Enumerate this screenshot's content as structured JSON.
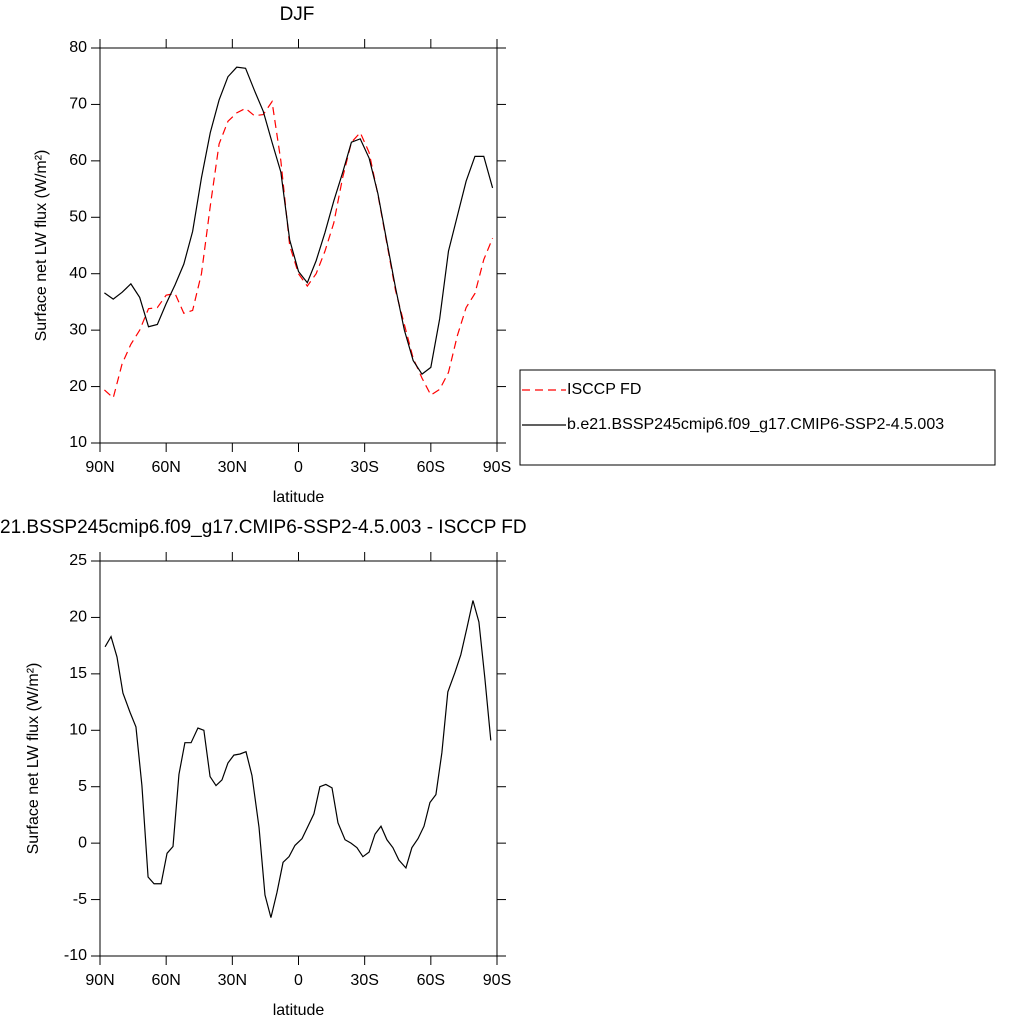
{
  "chart_data": [
    {
      "type": "line",
      "title": "DJF",
      "x_label": "latitude",
      "y_label": "Surface net LW flux (W/m²)",
      "x": [
        88,
        84,
        80,
        76,
        72,
        68,
        64,
        60,
        56,
        52,
        48,
        44,
        40,
        36,
        32,
        28,
        24,
        20,
        16,
        12,
        8,
        4,
        0,
        -4,
        -8,
        -12,
        -16,
        -20,
        -24,
        -28,
        -32,
        -36,
        -40,
        -44,
        -48,
        -52,
        -56,
        -60,
        -64,
        -68,
        -72,
        -76,
        -80,
        -84,
        -88
      ],
      "series": [
        {
          "name": "ISCCP FD",
          "color": "#ff0000",
          "line_style": "dashed",
          "values": [
            19.4,
            18.0,
            24.0,
            27.5,
            30.0,
            33.8,
            34.0,
            36.2,
            36.5,
            33.0,
            33.5,
            40.0,
            52.0,
            63.0,
            67.0,
            68.5,
            69.3,
            68.0,
            68.2,
            70.5,
            60.0,
            45.0,
            40.0,
            37.8,
            40.0,
            44.0,
            49.0,
            57.0,
            63.3,
            65.0,
            61.5,
            54.0,
            45.5,
            37.0,
            31.0,
            25.0,
            21.5,
            18.5,
            19.5,
            22.5,
            29.0,
            34.0,
            36.5,
            42.5,
            46.3
          ]
        },
        {
          "name": "b.e21.BSSP245cmip6.f09_g17.CMIP6-SSP2-4.5.003",
          "color": "#000000",
          "line_style": "solid",
          "values": [
            36.6,
            35.5,
            36.7,
            38.2,
            35.8,
            30.6,
            31.0,
            34.7,
            38.0,
            41.7,
            47.5,
            57.0,
            65.0,
            70.8,
            74.9,
            76.6,
            76.4,
            72.5,
            68.8,
            63.3,
            58.0,
            46.0,
            40.4,
            38.4,
            42.3,
            47.3,
            52.9,
            57.9,
            63.3,
            63.9,
            60.5,
            54.2,
            45.8,
            37.5,
            30.0,
            24.6,
            22.2,
            23.4,
            32.0,
            44.0,
            50.2,
            56.4,
            60.8,
            60.8,
            55.2
          ]
        }
      ],
      "xlim": [
        90,
        -90
      ],
      "xticks": [
        {
          "value": 90,
          "label": "90N"
        },
        {
          "value": 60,
          "label": "60N"
        },
        {
          "value": 30,
          "label": "30N"
        },
        0,
        {
          "value": -30,
          "label": "30S"
        },
        {
          "value": -60,
          "label": "60S"
        },
        {
          "value": -90,
          "label": "90S"
        }
      ],
      "ylim": [
        10,
        80
      ],
      "yticks": [
        10,
        20,
        30,
        40,
        50,
        60,
        70,
        80
      ],
      "legend": "right"
    },
    {
      "type": "line",
      "title": "21.BSSP245cmip6.f09_g17.CMIP6-SSP2-4.5.003 - ISCCP FD",
      "x_label": "latitude",
      "y_label": "Surface net LW flux (W/m²)",
      "x": [
        87.7,
        85.0,
        82.3,
        79.6,
        76.4,
        73.7,
        71.0,
        68.2,
        65.5,
        62.3,
        59.6,
        56.9,
        54.2,
        51.5,
        48.7,
        45.6,
        42.9,
        40.1,
        37.4,
        34.7,
        32.0,
        29.3,
        26.5,
        23.8,
        21.1,
        17.9,
        15.2,
        12.5,
        9.8,
        7.0,
        4.3,
        1.6,
        -1.6,
        -4.3,
        -7.0,
        -9.7,
        -12.4,
        -15.2,
        -17.9,
        -21.1,
        -23.8,
        -26.5,
        -29.2,
        -32.0,
        -34.7,
        -37.4,
        -40.1,
        -42.8,
        -45.5,
        -48.7,
        -51.4,
        -54.2,
        -56.9,
        -59.6,
        -62.3,
        -65.0,
        -67.7,
        -70.9,
        -73.6,
        -76.4,
        -79.1,
        -81.8,
        -84.5,
        -87.2
      ],
      "values": [
        17.4,
        18.3,
        16.5,
        13.3,
        11.6,
        10.3,
        5.1,
        -3.0,
        -3.6,
        -3.6,
        -0.9,
        -0.3,
        6.1,
        8.9,
        8.9,
        10.2,
        10.0,
        5.9,
        5.1,
        5.6,
        7.1,
        7.8,
        7.9,
        8.1,
        6.0,
        1.4,
        -4.6,
        -6.6,
        -4.4,
        -1.7,
        -1.2,
        -0.2,
        0.4,
        1.5,
        2.6,
        5.0,
        5.2,
        4.9,
        1.8,
        0.3,
        0.0,
        -0.4,
        -1.2,
        -0.8,
        0.8,
        1.5,
        0.3,
        -0.4,
        -1.5,
        -2.2,
        -0.4,
        0.4,
        1.5,
        3.6,
        4.3,
        8.0,
        13.4,
        15.1,
        16.7,
        19.1,
        21.5,
        19.6,
        14.6,
        9.1
      ],
      "color": "#000000",
      "xlim": [
        90,
        -90
      ],
      "xticks": [
        {
          "value": 90,
          "label": "90N"
        },
        {
          "value": 60,
          "label": "60N"
        },
        {
          "value": 30,
          "label": "30N"
        },
        0,
        {
          "value": -30,
          "label": "30S"
        },
        {
          "value": -60,
          "label": "60S"
        },
        {
          "value": -90,
          "label": "90S"
        }
      ],
      "ylim": [
        -10,
        25
      ],
      "yticks": [
        -10,
        -5,
        0,
        5,
        10,
        15,
        20,
        25
      ]
    }
  ]
}
